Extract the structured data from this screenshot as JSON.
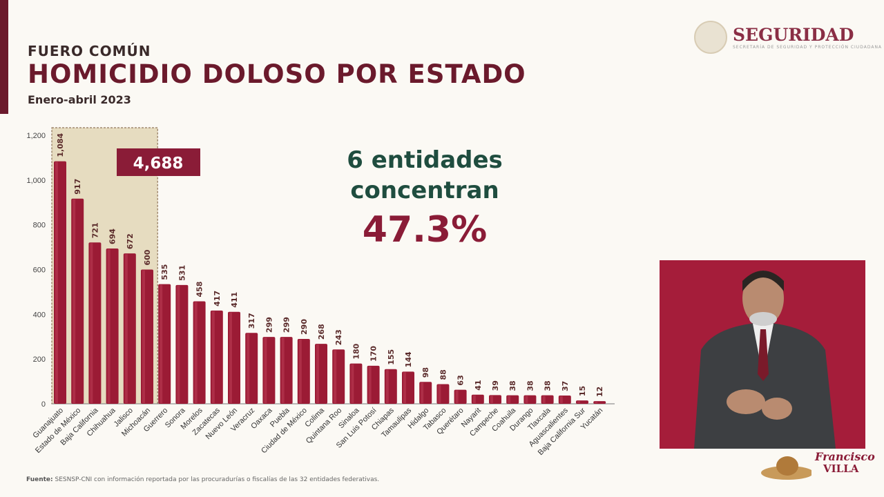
{
  "header": {
    "kicker": "FUERO COMÚN",
    "title": "HOMICIDIO DOLOSO POR ESTADO",
    "period": "Enero-abril 2023"
  },
  "logo": {
    "name": "SEGURIDAD",
    "subtitle": "SECRETARÍA DE SEGURIDAD Y PROTECCIÓN CIUDADANA"
  },
  "callout": {
    "line1": "6 entidades",
    "line2": "concentran",
    "percent": "47.3%"
  },
  "footer": {
    "label": "Fuente:",
    "text": " SESNSP-CNI con información reportada por las procuradurías o fiscalías de las 32 entidades federativas."
  },
  "branding": {
    "line1": "Francisco",
    "line2": "VILLA"
  },
  "colors": {
    "bar": "#9b1b35",
    "highlight": "#e6dcc0",
    "total_box": "#8a1c37"
  },
  "chart_data": {
    "type": "bar",
    "title": "HOMICIDIO DOLOSO POR ESTADO",
    "ylim": [
      0,
      1200
    ],
    "yticks": [
      "0",
      "200",
      "400",
      "600",
      "800",
      "1,000",
      "1,200"
    ],
    "highlight": {
      "count": 6,
      "total_label": "4,688"
    },
    "categories": [
      "Guanajuato",
      "Estado de México",
      "Baja California",
      "Chihuahua",
      "Jalisco",
      "Michoacán",
      "Guerrero",
      "Sonora",
      "Morelos",
      "Zacatecas",
      "Nuevo León",
      "Veracruz",
      "Oaxaca",
      "Puebla",
      "Ciudad de México",
      "Colima",
      "Quintana Roo",
      "Sinaloa",
      "San Luis Potosí",
      "Chiapas",
      "Tamaulipas",
      "Hidalgo",
      "Tabasco",
      "Querétaro",
      "Nayarit",
      "Campeche",
      "Coahuila",
      "Durango",
      "Tlaxcala",
      "Aguascalientes",
      "Baja California Sur",
      "Yucatán"
    ],
    "values": [
      1084,
      917,
      721,
      694,
      672,
      600,
      535,
      531,
      458,
      417,
      411,
      317,
      299,
      299,
      290,
      268,
      243,
      180,
      170,
      155,
      144,
      98,
      88,
      63,
      41,
      39,
      38,
      38,
      38,
      37,
      15,
      12
    ],
    "labels": [
      "1,084",
      "917",
      "721",
      "694",
      "672",
      "600",
      "535",
      "531",
      "458",
      "417",
      "411",
      "317",
      "299",
      "299",
      "290",
      "268",
      "243",
      "180",
      "170",
      "155",
      "144",
      "98",
      "88",
      "63",
      "41",
      "39",
      "38",
      "38",
      "38",
      "37",
      "15",
      "12"
    ]
  }
}
